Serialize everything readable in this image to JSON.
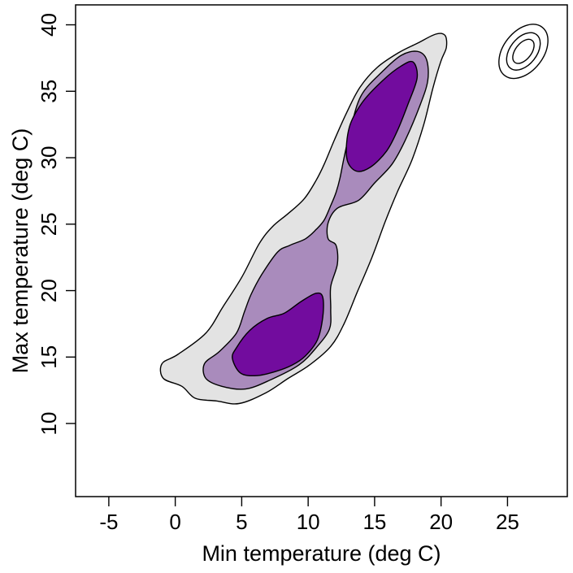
{
  "chart_data": {
    "type": "contour",
    "title": "",
    "xlabel": "Min temperature (deg C)",
    "ylabel": "Max temperature (deg C)",
    "xlim": [
      -7.5,
      29.5
    ],
    "ylim": [
      4.5,
      41.5
    ],
    "xticks": [
      -5,
      0,
      5,
      10,
      15,
      20,
      25
    ],
    "yticks": [
      10,
      15,
      20,
      25,
      30,
      35,
      40
    ],
    "grid": false,
    "legend": "none",
    "colors": {
      "outer": "#e3e3e3",
      "middle": "#a98bbc",
      "inner": "#720c9e",
      "line": "#000000"
    },
    "regions": [
      {
        "level": "outer",
        "points": [
          [
            0.5,
            12.8
          ],
          [
            -0.9,
            13.4
          ],
          [
            -1.0,
            14.5
          ],
          [
            0.2,
            15.2
          ],
          [
            2.3,
            16.8
          ],
          [
            3.6,
            18.8
          ],
          [
            5.0,
            21.0
          ],
          [
            6.3,
            23.5
          ],
          [
            7.3,
            24.8
          ],
          [
            8.5,
            25.8
          ],
          [
            9.7,
            26.9
          ],
          [
            10.6,
            28.3
          ],
          [
            11.2,
            29.5
          ],
          [
            12.0,
            31.4
          ],
          [
            12.9,
            33.4
          ],
          [
            13.9,
            35.3
          ],
          [
            15.2,
            36.8
          ],
          [
            16.8,
            37.9
          ],
          [
            18.2,
            38.6
          ],
          [
            19.6,
            39.3
          ],
          [
            20.3,
            39.2
          ],
          [
            20.4,
            38.3
          ],
          [
            20.0,
            37.3
          ],
          [
            19.4,
            35.3
          ],
          [
            18.7,
            32.5
          ],
          [
            17.8,
            29.8
          ],
          [
            16.7,
            27.4
          ],
          [
            15.8,
            25.2
          ],
          [
            14.8,
            22.5
          ],
          [
            13.7,
            19.9
          ],
          [
            12.7,
            17.5
          ],
          [
            11.7,
            15.8
          ],
          [
            10.1,
            14.4
          ],
          [
            8.5,
            13.4
          ],
          [
            6.8,
            12.3
          ],
          [
            4.8,
            11.5
          ],
          [
            3.1,
            11.7
          ],
          [
            1.5,
            11.9
          ]
        ]
      },
      {
        "level": "middle",
        "points": [
          [
            3.5,
            12.8
          ],
          [
            2.3,
            13.4
          ],
          [
            2.2,
            14.5
          ],
          [
            3.3,
            15.4
          ],
          [
            4.6,
            16.8
          ],
          [
            5.2,
            18.4
          ],
          [
            5.7,
            19.7
          ],
          [
            6.5,
            21.2
          ],
          [
            7.7,
            22.9
          ],
          [
            8.6,
            23.4
          ],
          [
            9.8,
            23.9
          ],
          [
            10.6,
            24.6
          ],
          [
            11.2,
            25.3
          ],
          [
            11.7,
            26.4
          ],
          [
            12.1,
            27.4
          ],
          [
            12.4,
            28.5
          ],
          [
            12.7,
            30.0
          ],
          [
            13.2,
            32.2
          ],
          [
            14.0,
            34.7
          ],
          [
            15.6,
            36.5
          ],
          [
            17.0,
            37.7
          ],
          [
            18.2,
            38.0
          ],
          [
            18.9,
            37.4
          ],
          [
            19.0,
            35.8
          ],
          [
            18.4,
            33.9
          ],
          [
            17.3,
            31.3
          ],
          [
            16.3,
            29.5
          ],
          [
            15.0,
            28.1
          ],
          [
            13.8,
            26.8
          ],
          [
            12.2,
            26.2
          ],
          [
            11.5,
            25.1
          ],
          [
            11.5,
            23.9
          ],
          [
            12.1,
            23.4
          ],
          [
            12.2,
            22.0
          ],
          [
            11.7,
            20.3
          ],
          [
            11.7,
            18.6
          ],
          [
            11.6,
            17.1
          ],
          [
            10.6,
            15.7
          ],
          [
            9.3,
            14.4
          ],
          [
            7.2,
            13.3
          ],
          [
            5.3,
            12.6
          ]
        ]
      },
      {
        "level": "inner",
        "points": [
          [
            4.3,
            14.9
          ],
          [
            4.6,
            15.7
          ],
          [
            5.6,
            17.0
          ],
          [
            6.9,
            17.9
          ],
          [
            8.2,
            18.3
          ],
          [
            9.5,
            19.2
          ],
          [
            10.6,
            19.8
          ],
          [
            11.1,
            19.5
          ],
          [
            11.1,
            18.0
          ],
          [
            10.7,
            16.3
          ],
          [
            9.8,
            15.1
          ],
          [
            8.8,
            14.4
          ],
          [
            7.5,
            13.9
          ],
          [
            6.1,
            13.6
          ],
          [
            4.9,
            13.8
          ]
        ]
      },
      {
        "level": "inner",
        "points": [
          [
            12.9,
            30.0
          ],
          [
            13.1,
            32.3
          ],
          [
            14.1,
            34.2
          ],
          [
            15.6,
            35.8
          ],
          [
            17.0,
            36.9
          ],
          [
            17.9,
            37.2
          ],
          [
            18.2,
            36.0
          ],
          [
            17.5,
            34.0
          ],
          [
            16.7,
            32.0
          ],
          [
            15.9,
            30.5
          ],
          [
            14.7,
            29.3
          ],
          [
            13.6,
            29.0
          ]
        ]
      }
    ],
    "outlier_rings": [
      {
        "center": [
          26.2,
          38.0
        ],
        "radius_x": 0.6,
        "radius_y": 1.05
      },
      {
        "center": [
          26.2,
          38.0
        ],
        "radius_x": 1.0,
        "radius_y": 1.6
      },
      {
        "center": [
          26.2,
          38.0
        ],
        "radius_x": 1.5,
        "radius_y": 2.3
      }
    ]
  }
}
